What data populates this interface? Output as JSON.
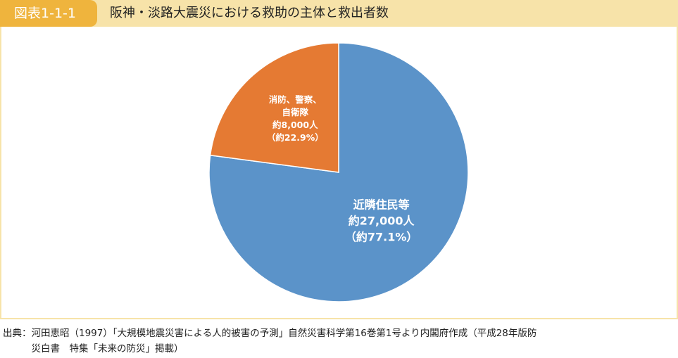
{
  "chart_data": {
    "type": "pie",
    "figure_label": "図表1-1-1",
    "title": "阪神・淡路大震災における救助の主体と救出者数",
    "categories": [
      "近隣住民等",
      "消防、警察、\n自衛隊"
    ],
    "values": [
      77.1,
      22.9
    ],
    "value_labels": [
      "（約77.1%）",
      "（約22.9%）"
    ],
    "counts": [
      27000,
      8000
    ],
    "count_labels": [
      "約27,000人",
      "約8,000人"
    ],
    "colors": [
      "#5b93c9",
      "#e57a33"
    ],
    "source_lines": [
      "出典：河田恵昭（1997）「大規模地震災害による人的被害の予測」自然災害科学第16巻第1号より内閣府作成（平成28年版防",
      "　　　災白書　特集「未来の防災」掲載）"
    ]
  }
}
